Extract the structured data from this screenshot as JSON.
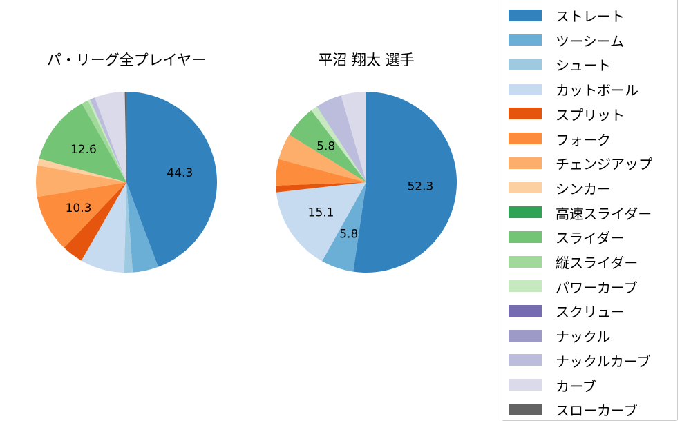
{
  "chart_data": [
    {
      "type": "pie",
      "title": "パ・リーグ全プレイヤー",
      "categories": [
        "ストレート",
        "ツーシーム",
        "シュート",
        "カットボール",
        "スプリット",
        "フォーク",
        "チェンジアップ",
        "シンカー",
        "高速スライダー",
        "スライダー",
        "縦スライダー",
        "パワーカーブ",
        "スクリュー",
        "ナックル",
        "ナックルカーブ",
        "カーブ",
        "スローカーブ"
      ],
      "values": [
        44.3,
        4.6,
        1.5,
        7.9,
        3.8,
        10.3,
        5.6,
        1.2,
        0.0,
        12.6,
        1.2,
        0.4,
        0.0,
        0.0,
        0.9,
        5.4,
        0.3
      ],
      "labels_shown": {
        "ストレート": "44.3",
        "フォーク": "10.3",
        "スライダー": "12.6"
      },
      "start_angle": 90,
      "direction": "clockwise"
    },
    {
      "type": "pie",
      "title": "平沼 翔太  選手",
      "categories": [
        "ストレート",
        "ツーシーム",
        "シュート",
        "カットボール",
        "スプリット",
        "フォーク",
        "チェンジアップ",
        "シンカー",
        "高速スライダー",
        "スライダー",
        "縦スライダー",
        "パワーカーブ",
        "スクリュー",
        "ナックル",
        "ナックルカーブ",
        "カーブ",
        "スローカーブ"
      ],
      "values": [
        52.3,
        5.8,
        0.0,
        15.1,
        1.2,
        4.7,
        4.7,
        0.0,
        0.0,
        5.8,
        0.0,
        1.2,
        0.0,
        0.0,
        4.7,
        4.5,
        0.0
      ],
      "labels_shown": {
        "ストレート": "52.3",
        "ツーシーム": "5.8",
        "カットボール": "15.1",
        "スライダー": "5.8"
      },
      "start_angle": 90,
      "direction": "clockwise"
    }
  ],
  "titles": {
    "left": "パ・リーグ全プレイヤー",
    "right": "平沼 翔太  選手"
  },
  "legend": {
    "items": [
      {
        "label": "ストレート",
        "color": "#3182bd"
      },
      {
        "label": "ツーシーム",
        "color": "#6baed6"
      },
      {
        "label": "シュート",
        "color": "#9ecae1"
      },
      {
        "label": "カットボール",
        "color": "#c6dbef"
      },
      {
        "label": "スプリット",
        "color": "#e6550d"
      },
      {
        "label": "フォーク",
        "color": "#fd8d3c"
      },
      {
        "label": "チェンジアップ",
        "color": "#fdae6b"
      },
      {
        "label": "シンカー",
        "color": "#fdd0a2"
      },
      {
        "label": "高速スライダー",
        "color": "#31a354"
      },
      {
        "label": "スライダー",
        "color": "#74c476"
      },
      {
        "label": "縦スライダー",
        "color": "#a1d99b"
      },
      {
        "label": "パワーカーブ",
        "color": "#c7e9c0"
      },
      {
        "label": "スクリュー",
        "color": "#756bb1"
      },
      {
        "label": "ナックル",
        "color": "#9e9ac8"
      },
      {
        "label": "ナックルカーブ",
        "color": "#bcbddc"
      },
      {
        "label": "カーブ",
        "color": "#dadaeb"
      },
      {
        "label": "スローカーブ",
        "color": "#636363"
      }
    ]
  }
}
